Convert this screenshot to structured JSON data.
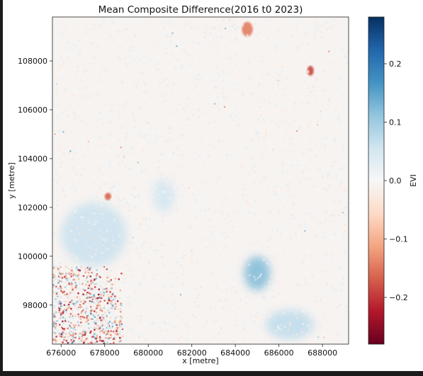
{
  "chart_data": {
    "type": "heatmap",
    "title": "Mean Composite Difference(2016 t0 2023)",
    "xlabel": "x [metre]",
    "ylabel": "y [metre]",
    "xlim": [
      675600,
      689200
    ],
    "ylim": [
      96400,
      109800
    ],
    "xticks": [
      "676000",
      "678000",
      "680000",
      "682000",
      "684000",
      "686000",
      "688000"
    ],
    "yticks": [
      "98000",
      "100000",
      "102000",
      "104000",
      "106000",
      "108000"
    ],
    "colorbar": {
      "label": "EVI",
      "colormap": "RdBu",
      "vmin": -0.28,
      "vmax": 0.28,
      "ticks": [
        "0.2",
        "0.1",
        "0.0",
        "−0.1",
        "−0.2"
      ],
      "tick_values": [
        0.2,
        0.1,
        0.0,
        -0.1,
        -0.2
      ]
    },
    "regions": [
      {
        "description": "noisy mixed patch",
        "x": [
          675600,
          678800
        ],
        "y": [
          96400,
          99600
        ],
        "value_range": [
          -0.25,
          0.15
        ]
      },
      {
        "description": "positive cluster",
        "x": [
          684400,
          685600
        ],
        "y": [
          98600,
          100000
        ],
        "value": 0.12
      },
      {
        "description": "positive band",
        "x": [
          676000,
          679000
        ],
        "y": [
          99600,
          102200
        ],
        "value": 0.06
      },
      {
        "description": "positive cluster",
        "x": [
          680200,
          681200
        ],
        "y": [
          101800,
          103200
        ],
        "value": 0.05
      },
      {
        "description": "positive cluster",
        "x": [
          685400,
          687600
        ],
        "y": [
          96600,
          97800
        ],
        "value": 0.07
      },
      {
        "description": "negative speck",
        "x": [
          678000,
          678300
        ],
        "y": [
          102300,
          102600
        ],
        "value": -0.16
      },
      {
        "description": "negative speck",
        "x": [
          687300,
          687600
        ],
        "y": [
          107400,
          107800
        ],
        "value": -0.18
      },
      {
        "description": "negative speck",
        "x": [
          684300,
          684800
        ],
        "y": [
          109000,
          109600
        ],
        "value": -0.14
      }
    ]
  }
}
